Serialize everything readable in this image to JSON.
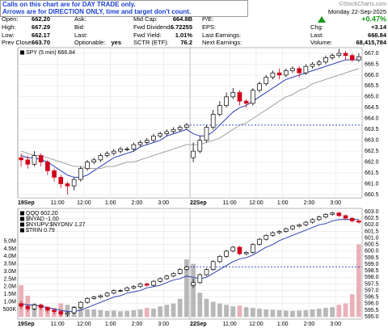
{
  "header": {
    "notice": [
      "Calls on this chart are for DAY TRADE only.",
      "Arrows are for DIRECTION ONLY, time and target don't count."
    ],
    "credit": "©StockCharts.com"
  },
  "quote": {
    "columns": [
      [
        [
          "Open:",
          "662.20"
        ],
        [
          "High:",
          "667.29"
        ],
        [
          "Low:",
          "662.17"
        ],
        [
          "Prev Close:",
          "663.70"
        ]
      ],
      [
        [
          "Ask:"
        ],
        [
          "Bid:"
        ],
        [
          "Last:"
        ],
        [
          "Optionable:",
          "yes"
        ]
      ],
      [
        [
          "Mid Cap:",
          "664.8B"
        ],
        [
          "Fwd Dividend:",
          "6.72255"
        ],
        [
          "Fwd Yield:",
          "1.01%"
        ],
        [
          "SCTR (ETF):",
          "76.2"
        ]
      ],
      [
        [
          "P/E:"
        ],
        [
          "EPS:"
        ],
        [
          "Last Earnings:"
        ],
        [
          "Next Earnings:"
        ]
      ]
    ],
    "date": "Monday 22-Sep-2025",
    "change_pct": "+0.47%",
    "summary": [
      [
        "Chg:",
        "+3.14"
      ],
      [
        "Last:",
        "666.84"
      ],
      [
        "Volume:",
        "68,415,784"
      ]
    ]
  },
  "chart_data": [
    {
      "type": "candlestick",
      "legend": [
        "SPY (5 min) 666.84"
      ],
      "up_color": "#000000",
      "down_color": "#d0021b",
      "xlim": [
        0,
        52
      ],
      "xticks": [
        {
          "value": 0,
          "label": "19Sep"
        },
        {
          "value": 6,
          "label": "11:00"
        },
        {
          "value": 10,
          "label": "12:00"
        },
        {
          "value": 14,
          "label": "1:00"
        },
        {
          "value": 18,
          "label": "2:00"
        },
        {
          "value": 22,
          "label": "3:00"
        },
        {
          "value": 26,
          "label": "22Sep"
        },
        {
          "value": 32,
          "label": "11:00"
        },
        {
          "value": 36,
          "label": "12:00"
        },
        {
          "value": 40,
          "label": "1:00"
        },
        {
          "value": 44,
          "label": "2:00"
        },
        {
          "value": 48,
          "label": "3:00"
        }
      ],
      "ylim": [
        660.35,
        667.26
      ],
      "yticks": [
        660.5,
        {
          "value": 661,
          "label": "661.0"
        },
        661.5,
        {
          "value": 662,
          "label": "662.0"
        },
        662.5,
        {
          "value": 663,
          "label": "663.0"
        },
        663.5,
        {
          "value": 664,
          "label": "664.0"
        },
        664.5,
        {
          "value": 665,
          "label": "665.0"
        },
        665.5,
        {
          "value": 666,
          "label": "666.0"
        },
        666.5,
        {
          "value": 667,
          "label": "667.0"
        }
      ],
      "grid": true,
      "reference_line": 663.7,
      "reference_color": "#1f3fbf",
      "ohlc": [
        [
          662.2,
          662.4,
          661.8,
          662.1
        ],
        [
          662.1,
          662.3,
          661.7,
          661.9
        ],
        [
          661.9,
          662.5,
          661.8,
          662.3
        ],
        [
          662.3,
          662.4,
          661.8,
          662.0
        ],
        [
          662.0,
          662.1,
          661.4,
          661.6
        ],
        [
          661.6,
          661.7,
          661.1,
          661.3
        ],
        [
          661.3,
          661.4,
          660.8,
          661.0
        ],
        [
          661.0,
          661.1,
          660.5,
          660.9
        ],
        [
          660.9,
          661.3,
          660.7,
          661.2
        ],
        [
          661.2,
          661.8,
          661.1,
          661.7
        ],
        [
          661.7,
          662.1,
          661.6,
          662.0
        ],
        [
          662.0,
          662.2,
          661.9,
          662.1
        ],
        [
          662.1,
          662.4,
          662.0,
          662.3
        ],
        [
          662.3,
          662.5,
          662.2,
          662.4
        ],
        [
          662.4,
          662.6,
          662.3,
          662.5
        ],
        [
          662.5,
          662.7,
          662.4,
          662.6
        ],
        [
          662.6,
          662.7,
          662.5,
          662.6
        ],
        [
          662.6,
          662.9,
          662.5,
          662.8
        ],
        [
          662.8,
          663.0,
          662.7,
          662.9
        ],
        [
          662.9,
          663.1,
          662.8,
          663.0
        ],
        [
          663.0,
          663.3,
          662.9,
          663.2
        ],
        [
          663.2,
          663.4,
          663.1,
          663.3
        ],
        [
          663.3,
          663.5,
          663.2,
          663.4
        ],
        [
          663.4,
          663.6,
          663.3,
          663.5
        ],
        [
          663.5,
          663.7,
          663.4,
          663.6
        ],
        [
          663.6,
          663.8,
          663.5,
          663.7
        ],
        [
          662.2,
          662.9,
          662.0,
          662.5
        ],
        [
          662.5,
          663.2,
          662.4,
          663.0
        ],
        [
          663.0,
          663.7,
          662.9,
          663.6
        ],
        [
          663.6,
          664.4,
          663.5,
          664.2
        ],
        [
          664.2,
          664.8,
          664.1,
          664.6
        ],
        [
          664.6,
          665.2,
          664.5,
          665.0
        ],
        [
          665.0,
          665.4,
          664.9,
          665.2
        ],
        [
          665.2,
          665.3,
          664.6,
          664.8
        ],
        [
          664.8,
          664.9,
          664.5,
          664.7
        ],
        [
          664.7,
          665.4,
          664.6,
          665.3
        ],
        [
          665.3,
          665.7,
          665.2,
          665.6
        ],
        [
          665.6,
          666.0,
          665.5,
          665.9
        ],
        [
          665.9,
          666.2,
          665.8,
          666.1
        ],
        [
          666.1,
          666.3,
          665.8,
          666.0
        ],
        [
          666.0,
          666.3,
          665.9,
          666.2
        ],
        [
          666.2,
          666.4,
          666.1,
          666.3
        ],
        [
          666.3,
          666.4,
          665.9,
          666.1
        ],
        [
          666.1,
          666.5,
          666.0,
          666.4
        ],
        [
          666.4,
          666.6,
          666.3,
          666.5
        ],
        [
          666.5,
          666.7,
          666.4,
          666.6
        ],
        [
          666.6,
          666.9,
          666.5,
          666.8
        ],
        [
          666.8,
          667.0,
          666.7,
          666.9
        ],
        [
          666.9,
          667.2,
          666.8,
          667.0
        ],
        [
          667.0,
          667.1,
          666.7,
          666.9
        ],
        [
          666.9,
          667.0,
          666.6,
          666.7
        ],
        [
          666.7,
          667.0,
          666.6,
          666.84
        ]
      ],
      "overlays": [
        {
          "color": "#2a3fb0",
          "values": [
            662.3,
            662.2,
            662.2,
            662.1,
            662.0,
            661.8,
            661.6,
            661.4,
            661.3,
            661.3,
            661.4,
            661.6,
            661.8,
            662.0,
            662.2,
            662.3,
            662.4,
            662.5,
            662.7,
            662.8,
            662.9,
            663.0,
            663.2,
            663.3,
            663.4,
            663.5,
            663.3,
            663.2,
            663.2,
            663.4,
            663.7,
            664.0,
            664.3,
            664.5,
            664.6,
            664.8,
            665.0,
            665.2,
            665.4,
            665.6,
            665.8,
            665.9,
            666.0,
            666.1,
            666.2,
            666.3,
            666.4,
            666.5,
            666.6,
            666.7,
            666.7,
            666.7
          ]
        },
        {
          "color": "#a0a0a0",
          "values": [
            662.5,
            662.4,
            662.3,
            662.3,
            662.2,
            662.1,
            662.0,
            661.9,
            661.8,
            661.8,
            661.7,
            661.7,
            661.7,
            661.8,
            661.8,
            661.9,
            662.0,
            662.0,
            662.1,
            662.2,
            662.3,
            662.4,
            662.5,
            662.6,
            662.7,
            662.8,
            662.8,
            662.8,
            662.9,
            663.0,
            663.1,
            663.3,
            663.5,
            663.7,
            663.8,
            664.0,
            664.2,
            664.4,
            664.6,
            664.8,
            665.0,
            665.1,
            665.3,
            665.4,
            665.6,
            665.7,
            665.8,
            665.9,
            666.0,
            666.1,
            666.2,
            666.3
          ]
        }
      ]
    },
    {
      "type": "candlestick",
      "legend": [
        "QQQ 602.20",
        "$NYAD -1.00",
        "$NYUPV:$NYDNV 1.27",
        "$TRIN 0.79"
      ],
      "up_color": "#000000",
      "down_color": "#d0021b",
      "xlim": [
        0,
        52
      ],
      "xticks": [
        {
          "value": 0,
          "label": "19Sep"
        },
        {
          "value": 6,
          "label": "11:00"
        },
        {
          "value": 10,
          "label": "12:00"
        },
        {
          "value": 14,
          "label": "1:00"
        },
        {
          "value": 18,
          "label": "2:00"
        },
        {
          "value": 22,
          "label": "3:00"
        },
        {
          "value": 26,
          "label": "22Sep"
        },
        {
          "value": 32,
          "label": "11:00"
        },
        {
          "value": 36,
          "label": "12:00"
        },
        {
          "value": 40,
          "label": "1:00"
        },
        {
          "value": 44,
          "label": "2:00"
        },
        {
          "value": 48,
          "label": "3:00"
        }
      ],
      "ylim": [
        594.82,
        603.25
      ],
      "yticks": [
        {
          "value": 595,
          "label": "595.0"
        },
        595.5,
        {
          "value": 596,
          "label": "596.0"
        },
        596.5,
        {
          "value": 597,
          "label": "597.0"
        },
        597.5,
        {
          "value": 598,
          "label": "598.0"
        },
        598.5,
        {
          "value": 599,
          "label": "599.0"
        },
        599.5,
        {
          "value": 600,
          "label": "600.0"
        },
        600.5,
        {
          "value": 601,
          "label": "601.0"
        },
        601.5,
        {
          "value": 602,
          "label": "602.0"
        },
        602.5,
        {
          "value": 603,
          "label": "603.0"
        }
      ],
      "grid": true,
      "reference_line": 598.8,
      "reference_color": "#1f3fbf",
      "ohlc": [
        [
          596.0,
          596.2,
          595.6,
          595.8
        ],
        [
          595.8,
          595.9,
          595.4,
          595.6
        ],
        [
          595.6,
          596.0,
          595.5,
          595.9
        ],
        [
          595.9,
          596.0,
          595.5,
          595.7
        ],
        [
          595.7,
          595.8,
          595.3,
          595.5
        ],
        [
          595.5,
          595.6,
          595.2,
          595.4
        ],
        [
          595.4,
          595.5,
          595.0,
          595.2
        ],
        [
          595.2,
          595.4,
          595.0,
          595.3
        ],
        [
          595.3,
          595.8,
          595.2,
          595.7
        ],
        [
          595.7,
          596.2,
          595.6,
          596.1
        ],
        [
          596.1,
          596.5,
          596.0,
          596.4
        ],
        [
          596.4,
          596.6,
          596.3,
          596.5
        ],
        [
          596.5,
          596.7,
          596.4,
          596.6
        ],
        [
          596.6,
          596.9,
          596.5,
          596.8
        ],
        [
          596.8,
          597.1,
          596.7,
          597.0
        ],
        [
          597.0,
          597.1,
          596.9,
          597.0
        ],
        [
          597.0,
          597.3,
          596.9,
          597.2
        ],
        [
          597.2,
          597.4,
          597.1,
          597.3
        ],
        [
          597.3,
          597.6,
          597.2,
          597.5
        ],
        [
          597.5,
          597.6,
          597.3,
          597.4
        ],
        [
          597.4,
          597.8,
          597.3,
          597.7
        ],
        [
          597.7,
          598.0,
          597.6,
          597.9
        ],
        [
          597.9,
          598.2,
          597.8,
          598.1
        ],
        [
          598.1,
          598.4,
          598.0,
          598.3
        ],
        [
          598.3,
          598.7,
          598.2,
          598.6
        ],
        [
          598.6,
          598.9,
          598.5,
          598.8
        ],
        [
          597.4,
          597.9,
          597.2,
          597.6
        ],
        [
          597.6,
          598.3,
          597.5,
          598.2
        ],
        [
          598.2,
          598.7,
          598.1,
          598.6
        ],
        [
          598.6,
          599.3,
          598.5,
          599.2
        ],
        [
          599.2,
          599.7,
          599.1,
          599.6
        ],
        [
          599.6,
          600.1,
          599.5,
          600.0
        ],
        [
          600.0,
          600.4,
          599.9,
          600.3
        ],
        [
          600.3,
          600.4,
          599.7,
          599.8
        ],
        [
          599.8,
          600.0,
          599.7,
          599.9
        ],
        [
          599.9,
          600.6,
          599.8,
          600.5
        ],
        [
          600.5,
          601.0,
          600.4,
          600.9
        ],
        [
          600.9,
          601.3,
          600.8,
          601.2
        ],
        [
          601.2,
          601.5,
          601.1,
          601.4
        ],
        [
          601.4,
          601.6,
          601.3,
          601.5
        ],
        [
          601.5,
          601.8,
          601.4,
          601.7
        ],
        [
          601.7,
          602.0,
          601.6,
          601.9
        ],
        [
          601.9,
          602.1,
          601.8,
          602.0
        ],
        [
          602.0,
          602.3,
          601.9,
          602.2
        ],
        [
          602.2,
          602.5,
          602.1,
          602.4
        ],
        [
          602.4,
          602.7,
          602.3,
          602.6
        ],
        [
          602.6,
          602.9,
          602.5,
          602.8
        ],
        [
          602.8,
          603.0,
          602.7,
          602.9
        ],
        [
          602.9,
          603.0,
          602.6,
          602.7
        ],
        [
          602.7,
          602.8,
          602.4,
          602.5
        ],
        [
          602.5,
          602.6,
          602.2,
          602.3
        ],
        [
          602.3,
          602.4,
          602.1,
          602.2
        ]
      ],
      "overlays": [
        {
          "color": "#2a3fb0",
          "values": [
            596.0,
            595.9,
            595.9,
            595.8,
            595.7,
            595.6,
            595.5,
            595.4,
            595.4,
            595.5,
            595.7,
            595.9,
            596.1,
            596.3,
            596.5,
            596.6,
            596.8,
            596.9,
            597.0,
            597.2,
            597.3,
            597.4,
            597.6,
            597.8,
            597.9,
            598.1,
            598.0,
            597.9,
            598.0,
            598.3,
            598.6,
            598.9,
            599.2,
            599.4,
            599.5,
            599.7,
            600.0,
            600.3,
            600.5,
            600.8,
            601.0,
            601.2,
            601.4,
            601.6,
            601.8,
            602.0,
            602.1,
            602.3,
            602.4,
            602.4,
            602.4,
            602.4
          ]
        }
      ],
      "volume": [
        2100000,
        1400000,
        900000,
        800000,
        700000,
        600000,
        900000,
        800000,
        700000,
        600000,
        500000,
        500000,
        450000,
        400000,
        420000,
        380000,
        400000,
        450000,
        500000,
        600000,
        550000,
        700000,
        800000,
        900000,
        1200000,
        3800000,
        3500000,
        1600000,
        1200000,
        1000000,
        900000,
        800000,
        700000,
        750000,
        650000,
        600000,
        550000,
        500000,
        480000,
        450000,
        420000,
        400000,
        420000,
        450000,
        500000,
        550000,
        600000,
        650000,
        800000,
        900000,
        1500000,
        4800000
      ],
      "volume_up_color": "#b8b8b8",
      "volume_down_color": "#eab0b8",
      "volume_lim": [
        -140000,
        7160000
      ],
      "volume_ticks": [
        {
          "value": 500000,
          "label": "500K"
        },
        {
          "value": 1000000,
          "label": "1.0M"
        },
        {
          "value": 1500000,
          "label": "1.5M"
        },
        {
          "value": 2000000,
          "label": "2.0M"
        },
        {
          "value": 2500000,
          "label": "2.5M"
        },
        {
          "value": 3000000,
          "label": "3.0M"
        },
        {
          "value": 3500000,
          "label": "3.5M"
        },
        {
          "value": 4000000,
          "label": "4.0M"
        },
        {
          "value": 4500000,
          "label": "4.5M"
        },
        {
          "value": 5000000,
          "label": "5.0M"
        }
      ]
    }
  ]
}
